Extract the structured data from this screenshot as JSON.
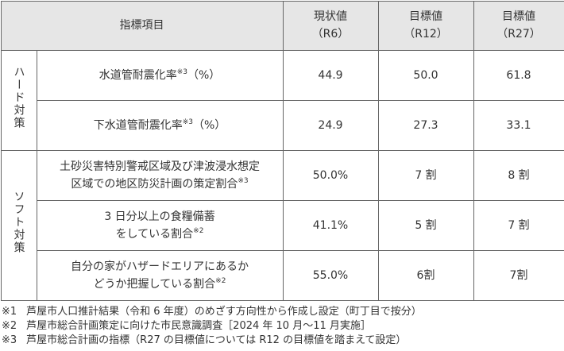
{
  "table": {
    "header": {
      "item": "指標項目",
      "columns": [
        [
          "現状値",
          "（R6）"
        ],
        [
          "目標値",
          "（R12）"
        ],
        [
          "目標値",
          "（R27）"
        ]
      ]
    },
    "groups": [
      {
        "label": "ハード対策",
        "rows": [
          {
            "item": {
              "lines": [
                "水道管耐震化率"
              ],
              "note": "※3",
              "after": "（%）"
            },
            "values": [
              "44.9",
              "50.0",
              "61.8"
            ]
          },
          {
            "item": {
              "lines": [
                "下水道管耐震化率"
              ],
              "note": "※3",
              "after": "（%）"
            },
            "values": [
              "24.9",
              "27.3",
              "33.1"
            ]
          }
        ]
      },
      {
        "label": "ソフト対策",
        "rows": [
          {
            "item": {
              "lines": [
                "土砂災害特別警戒区域及び津波浸水想定",
                "区域での地区防災計画の策定割合"
              ],
              "note": "※3"
            },
            "values": [
              "50.0%",
              "7 割",
              "8 割"
            ]
          },
          {
            "item": {
              "lines": [
                "3 日分以上の食糧備蓄",
                "をしている割合"
              ],
              "note": "※2"
            },
            "values": [
              "41.1%",
              "5 割",
              "7 割"
            ]
          },
          {
            "item": {
              "lines": [
                "自分の家がハザードエリアにあるか",
                "どうか把握している割合"
              ],
              "note": "※2"
            },
            "values": [
              "55.0%",
              "6割",
              "7割"
            ]
          }
        ]
      }
    ]
  },
  "footnotes": [
    {
      "mark": "※1",
      "text": "芦屋市人口推計結果（令和 6 年度）のめざす方向性から作成し設定（町丁目で按分）"
    },
    {
      "mark": "※2",
      "text": "芦屋市総合計画策定に向けた市民意識調査［2024 年 10 月～11 月実施］"
    },
    {
      "mark": "※3",
      "text": "芦屋市総合計画の指標（R27 の目標値については R12 の目標値を踏まえて設定）"
    }
  ]
}
